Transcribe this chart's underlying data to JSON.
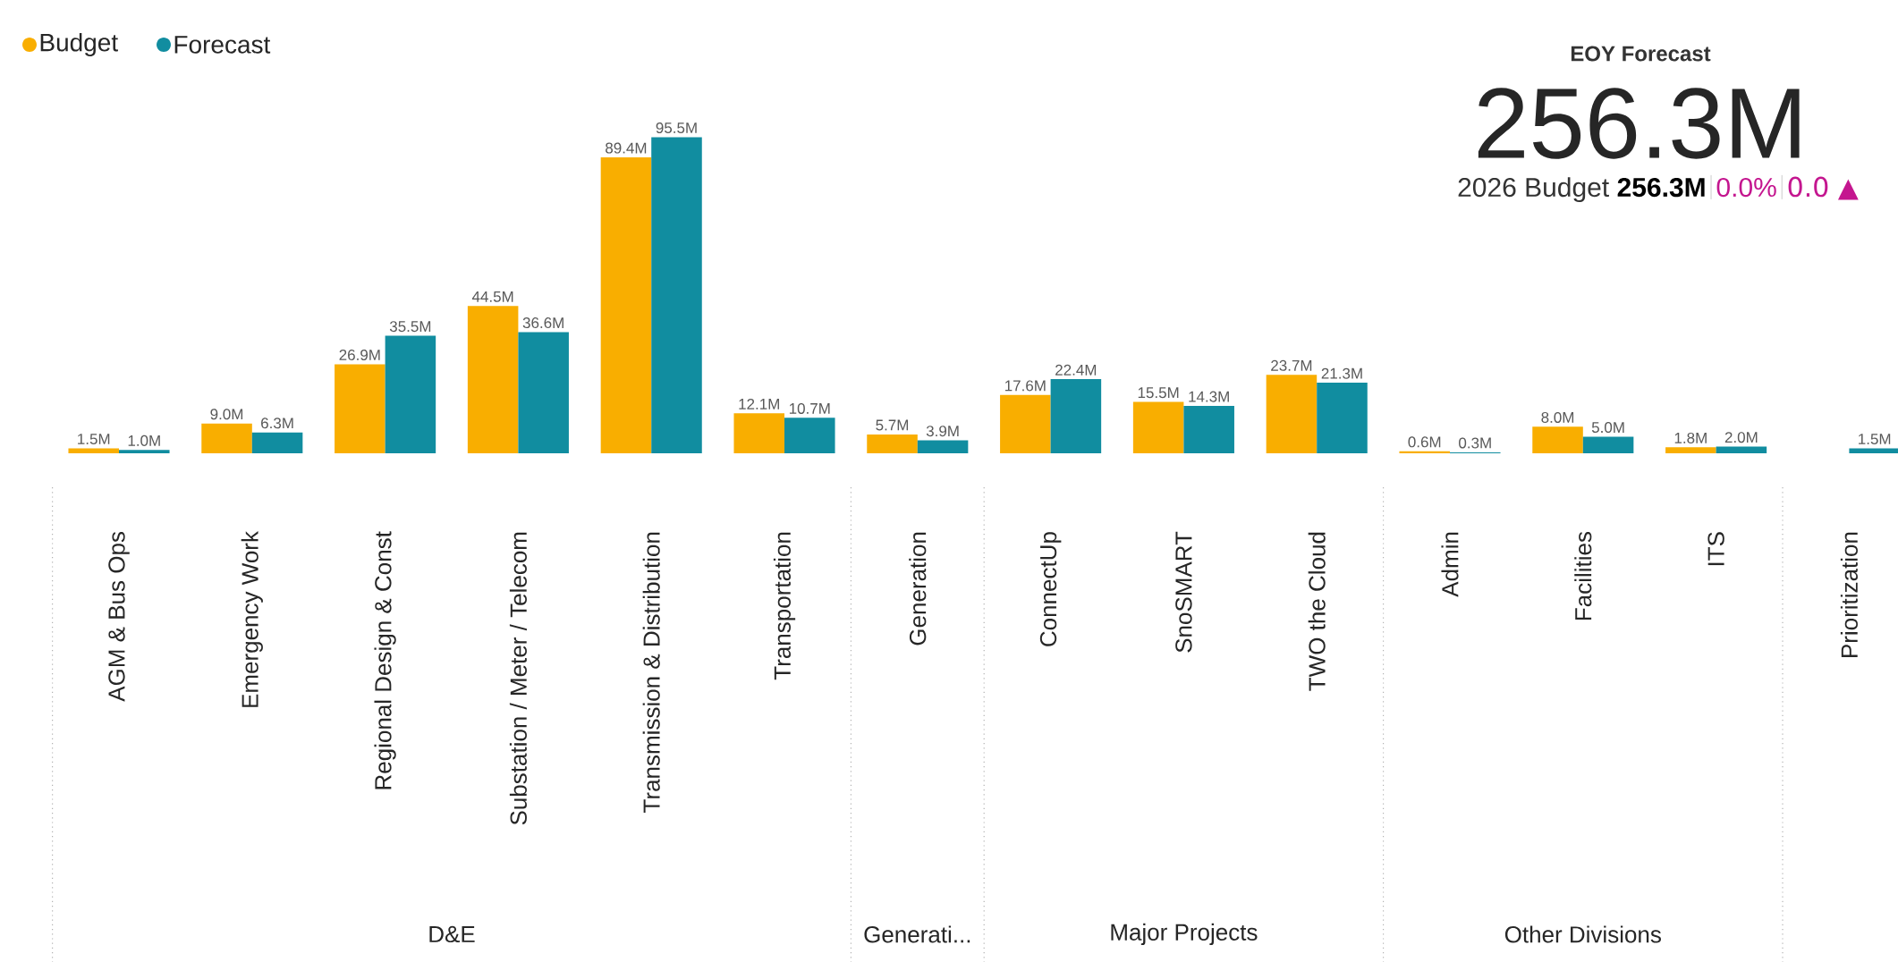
{
  "chart_data": {
    "type": "bar",
    "categories": [
      "AGM & Bus Ops",
      "Emergency Work",
      "Regional Design & Const",
      "Substation / Meter / Telecom",
      "Transmission & Distribution",
      "Transportation",
      "Generation",
      "ConnectUp",
      "SnoSMART",
      "TWO the Cloud",
      "Admin",
      "Facilities",
      "ITS",
      "Prioritization"
    ],
    "series": [
      {
        "name": "Budget",
        "color": "#f9ae00",
        "values": [
          1.5,
          9.0,
          26.9,
          44.5,
          89.4,
          12.1,
          5.7,
          17.6,
          15.5,
          23.7,
          0.6,
          8.0,
          1.8,
          null
        ],
        "value_labels": [
          "1.5M",
          "9.0M",
          "26.9M",
          "44.5M",
          "89.4M",
          "12.1M",
          "5.7M",
          "17.6M",
          "15.5M",
          "23.7M",
          "0.6M",
          "8.0M",
          "1.8M",
          null
        ]
      },
      {
        "name": "Forecast",
        "color": "#118da0",
        "values": [
          1.0,
          6.3,
          35.5,
          36.6,
          95.5,
          10.7,
          3.9,
          22.4,
          14.3,
          21.3,
          0.3,
          5.0,
          2.0,
          1.5
        ],
        "value_labels": [
          "1.0M",
          "6.3M",
          "35.5M",
          "36.6M",
          "95.5M",
          "10.7M",
          "3.9M",
          "22.4M",
          "14.3M",
          "21.3M",
          "0.3M",
          "5.0M",
          "2.0M",
          "1.5M"
        ]
      }
    ],
    "legend": "top left",
    "annotations": [
      "D&E",
      "Generati...",
      "Major Projects",
      "Other Divisions",
      "EOY Forecast",
      "256.3M",
      "2026 Budget",
      "256.3M",
      "0.0%",
      "0.0 ▲"
    ]
  }
}
